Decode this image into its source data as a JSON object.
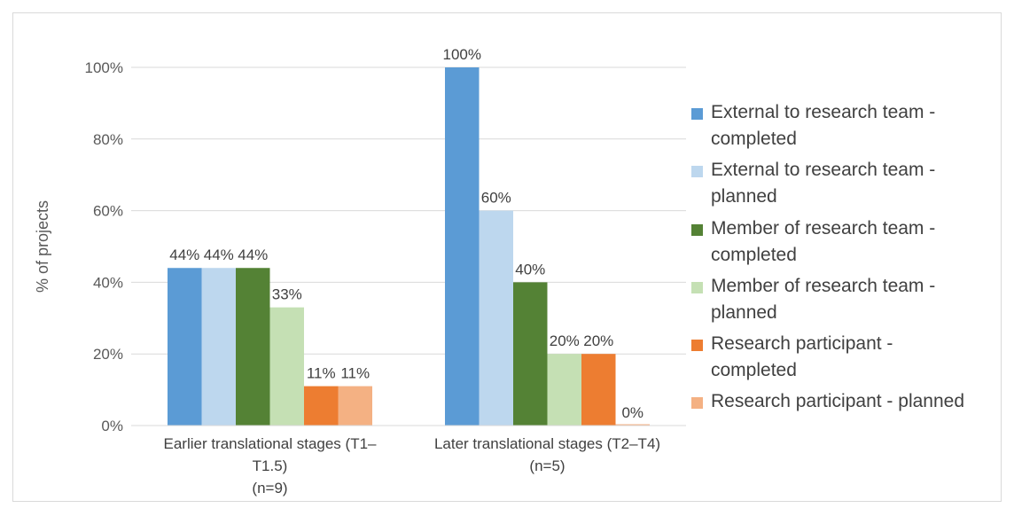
{
  "chart_data": {
    "type": "bar",
    "ylabel": "% of projects",
    "xlabel": "",
    "ylim": [
      0,
      100
    ],
    "yticks": [
      "0%",
      "20%",
      "40%",
      "60%",
      "80%",
      "100%"
    ],
    "grid": true,
    "legend_position": "right",
    "categories": [
      {
        "label": "Earlier translational stages (T1–T1.5) (n=9)",
        "lines": [
          "Earlier translational stages (T1–",
          "T1.5)",
          "(n=9)"
        ]
      },
      {
        "label": "Later translational stages (T2–T4) (n=5)",
        "lines": [
          "Later translational stages (T2–T4)",
          "(n=5)"
        ]
      }
    ],
    "series": [
      {
        "name": "External to research team - completed",
        "name_lines": [
          "External to research team -",
          "completed"
        ],
        "color": "#5b9bd5",
        "values": [
          44,
          100
        ],
        "labels": [
          "44%",
          "100%"
        ]
      },
      {
        "name": "External to research team - planned",
        "name_lines": [
          "External to research team -",
          "planned"
        ],
        "color": "#bdd7ee",
        "values": [
          44,
          60
        ],
        "labels": [
          "44%",
          "60%"
        ]
      },
      {
        "name": "Member of research team - completed",
        "name_lines": [
          "Member of research team -",
          "completed"
        ],
        "color": "#548235",
        "values": [
          44,
          40
        ],
        "labels": [
          "44%",
          "40%"
        ]
      },
      {
        "name": "Member of research team - planned",
        "name_lines": [
          "Member of research team -",
          "planned"
        ],
        "color": "#c5e0b4",
        "values": [
          33,
          20
        ],
        "labels": [
          "33%",
          "20%"
        ]
      },
      {
        "name": "Research participant - completed",
        "name_lines": [
          "Research participant -",
          "completed"
        ],
        "color": "#ed7d31",
        "values": [
          11,
          20
        ],
        "labels": [
          "11%",
          "20%"
        ]
      },
      {
        "name": "Research participant - planned",
        "name_lines": [
          "Research participant - planned"
        ],
        "color": "#f4b183",
        "values": [
          11,
          0
        ],
        "labels": [
          "11%",
          "0%"
        ]
      }
    ]
  }
}
